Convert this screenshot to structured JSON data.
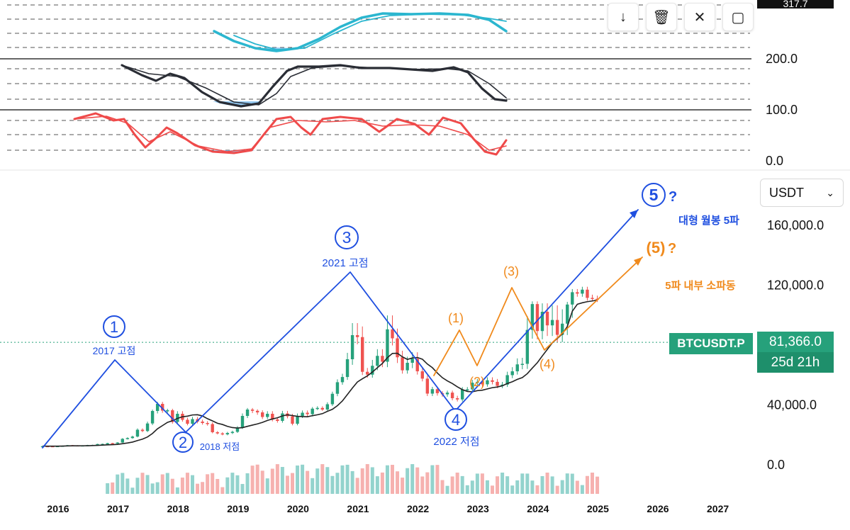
{
  "toolbar": {
    "top_value": "317.7",
    "buttons": [
      {
        "name": "download",
        "icon": "↓"
      },
      {
        "name": "delete",
        "icon": "🗑"
      },
      {
        "name": "collapse",
        "icon": "✕"
      },
      {
        "name": "maximize",
        "icon": "▢"
      }
    ]
  },
  "indicator_axis": {
    "labels": [
      "200.0",
      "100.0",
      "0.0"
    ]
  },
  "price_axis": {
    "labels": [
      "160,000.0",
      "120,000.0",
      "40,000.0",
      "0.0"
    ]
  },
  "currency_select": {
    "value": "USDT",
    "chevron": "⌄"
  },
  "symbol_tag": {
    "symbol": "BTCUSDT.P",
    "price": "81,366.0",
    "countdown": "25d 21h"
  },
  "x_axis": {
    "labels": [
      "2016",
      "2017",
      "2018",
      "2019",
      "2020",
      "2021",
      "2022",
      "2023",
      "2024",
      "2025",
      "2026",
      "2027"
    ]
  },
  "annotations": {
    "w1": "1",
    "w1_label": "2017 고점",
    "w2": "2",
    "w2_label": "2018 저점",
    "w3": "3",
    "w3_label": "2021 고점",
    "w4": "4",
    "w4_label": "2022 저점",
    "w5": "5",
    "w5_q": "?",
    "w5_label": "대형 월봉 5파",
    "s1": "(1)",
    "s2": "(2)",
    "s3": "(3)",
    "s4": "(4)",
    "s5": "(5)",
    "s5_q": "?",
    "s_label": "5파 내부 소파동"
  },
  "colors": {
    "blue": "#1f4fe0",
    "orange": "#f08a1c",
    "up": "#26a17b",
    "down": "#ef5350",
    "cyan": "#2bb6cf",
    "dark": "#2a2d35",
    "red_ind": "#ef4a4a"
  },
  "chart_data": {
    "type": "candlestick",
    "currency": "USDT",
    "symbol": "BTCUSDT.P",
    "last_price": 81366,
    "y_ticks": [
      160000,
      120000,
      40000,
      0
    ],
    "x_ticks": [
      2016,
      2017,
      2018,
      2019,
      2020,
      2021,
      2022,
      2023,
      2024,
      2025,
      2026,
      2027
    ],
    "monthly_close": [
      430,
      420,
      416,
      448,
      530,
      670,
      624,
      573,
      608,
      700,
      740,
      963,
      998,
      1190,
      1080,
      1350,
      2300,
      2500,
      2880,
      4700,
      4340,
      6470,
      10000,
      14000,
      10200,
      10400,
      6900,
      9200,
      7500,
      6400,
      7700,
      7000,
      6600,
      6300,
      4000,
      3700,
      3450,
      3800,
      4100,
      5300,
      8600,
      10800,
      10100,
      9600,
      8300,
      9200,
      7600,
      7200,
      9300,
      8500,
      6400,
      8600,
      9500,
      9100,
      11300,
      11700,
      10800,
      13800,
      19700,
      28900,
      33100,
      45200,
      58800,
      57700,
      37300,
      35000,
      41500,
      47100,
      43800,
      61300,
      57000,
      46300,
      38500,
      43200,
      45500,
      37700,
      31800,
      19800,
      23300,
      20050,
      19400,
      20500,
      17200,
      16500,
      23100,
      23150,
      28500,
      29200,
      27200,
      30450,
      29200,
      25950,
      26970,
      34600,
      37700,
      42300,
      42600,
      61100,
      71300,
      60700,
      67500,
      62700,
      64600,
      58970,
      63300,
      70300,
      96400,
      93400,
      102400,
      84400,
      82500,
      81366
    ],
    "indicator_bands": [
      200,
      100,
      0
    ],
    "elliott_wave": [
      {
        "label": "1",
        "note": "2017 고점"
      },
      {
        "label": "2",
        "note": "2018 저점"
      },
      {
        "label": "3",
        "note": "2021 고점"
      },
      {
        "label": "4",
        "note": "2022 저점"
      },
      {
        "label": "5",
        "note": "대형 월봉 5파"
      }
    ],
    "sub_waves": [
      "(1)",
      "(2)",
      "(3)",
      "(4)",
      "(5)"
    ]
  }
}
